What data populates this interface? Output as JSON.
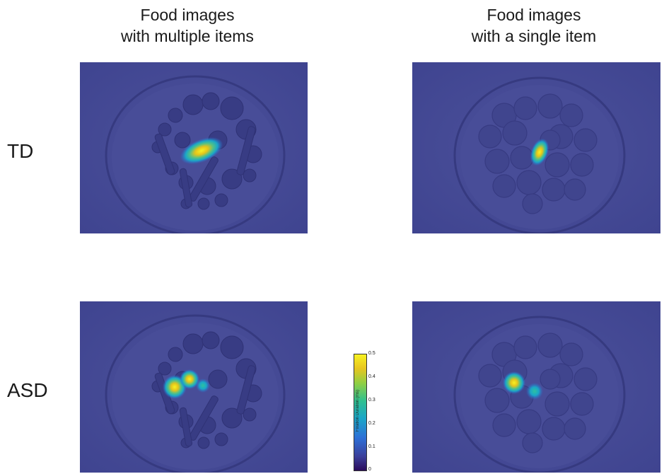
{
  "columns": {
    "left": {
      "line1": "Food images",
      "line2": "with multiple items"
    },
    "right": {
      "line1": "Food images",
      "line2": "with a single item"
    }
  },
  "rows": {
    "top": "TD",
    "bottom": "ASD"
  },
  "colorbar": {
    "label": "Fixation Duration (ms)",
    "ticks": [
      "0.5",
      "0.4",
      "0.3",
      "0.2",
      "0.1",
      "0"
    ],
    "colors": {
      "low": "#2b0b5c",
      "background": "#464b95",
      "mid": "#1aa6c8",
      "high": "#f7f221"
    }
  }
}
